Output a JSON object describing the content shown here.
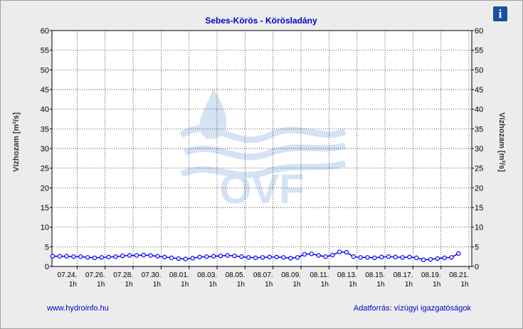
{
  "chart_data": {
    "type": "line",
    "title": "Sebes-Körös - Körösladány",
    "y_label": "Vízhozam [m³/s]",
    "y2_label": "Vízhozam [m³/s]",
    "watermark": "OVF",
    "info_icon": "i",
    "footer_left": "www.hydroinfo.hu",
    "footer_right": "Adatforrás: vízügyi igazgatóságok",
    "xtick_hour": "1h",
    "xlim": [
      0.2,
      30.2
    ],
    "xticks": [
      {
        "value": 2,
        "label": "07.24."
      },
      {
        "value": 4,
        "label": "07.26."
      },
      {
        "value": 6,
        "label": "07.28."
      },
      {
        "value": 8,
        "label": "07.30."
      },
      {
        "value": 10,
        "label": "08.01."
      },
      {
        "value": 12,
        "label": "08.03."
      },
      {
        "value": 14,
        "label": "08.05."
      },
      {
        "value": 16,
        "label": "08.07."
      },
      {
        "value": 18,
        "label": "08.09."
      },
      {
        "value": 20,
        "label": "08.11."
      },
      {
        "value": 22,
        "label": "08.13."
      },
      {
        "value": 24,
        "label": "08.15."
      },
      {
        "value": 26,
        "label": "08.17."
      },
      {
        "value": 28,
        "label": "08.19."
      },
      {
        "value": 30,
        "label": "08.21."
      }
    ],
    "ylim": [
      0,
      60
    ],
    "yticks": [
      0,
      5,
      10,
      15,
      20,
      25,
      30,
      35,
      40,
      45,
      50,
      55,
      60
    ],
    "y2lim": [
      0,
      60
    ],
    "y2ticks": [
      0,
      5,
      10,
      15,
      20,
      25,
      30,
      35,
      40,
      45,
      50,
      55,
      60
    ],
    "grid": true,
    "x": [
      0.25,
      0.75,
      1.25,
      1.75,
      2.25,
      2.75,
      3.25,
      3.75,
      4.25,
      4.75,
      5.25,
      5.75,
      6.25,
      6.75,
      7.25,
      7.75,
      8.25,
      8.75,
      9.25,
      9.75,
      10.25,
      10.75,
      11.25,
      11.75,
      12.25,
      12.75,
      13.25,
      13.75,
      14.25,
      14.75,
      15.25,
      15.75,
      16.25,
      16.75,
      17.25,
      17.75,
      18.25,
      18.75,
      19.25,
      19.75,
      20.25,
      20.75,
      21.25,
      21.75,
      22.25,
      22.75,
      23.25,
      23.75,
      24.25,
      24.75,
      25.25,
      25.75,
      26.25,
      26.75,
      27.25,
      27.75,
      28.25,
      28.75,
      29.25
    ],
    "series": [
      {
        "color": "#0000ee",
        "values": [
          2.6,
          2.6,
          2.6,
          2.5,
          2.5,
          2.3,
          2.2,
          2.3,
          2.4,
          2.5,
          2.7,
          2.8,
          2.8,
          2.9,
          2.8,
          2.6,
          2.4,
          2.2,
          2.0,
          1.9,
          2.1,
          2.4,
          2.5,
          2.6,
          2.7,
          2.8,
          2.7,
          2.5,
          2.3,
          2.2,
          2.3,
          2.4,
          2.4,
          2.3,
          2.1,
          2.3,
          3.1,
          3.2,
          2.8,
          2.5,
          2.9,
          3.7,
          3.6,
          2.5,
          2.3,
          2.3,
          2.2,
          2.4,
          2.5,
          2.4,
          2.3,
          2.4,
          2.2,
          1.7,
          1.8,
          2.0,
          2.2,
          2.3,
          3.3
        ]
      }
    ]
  }
}
